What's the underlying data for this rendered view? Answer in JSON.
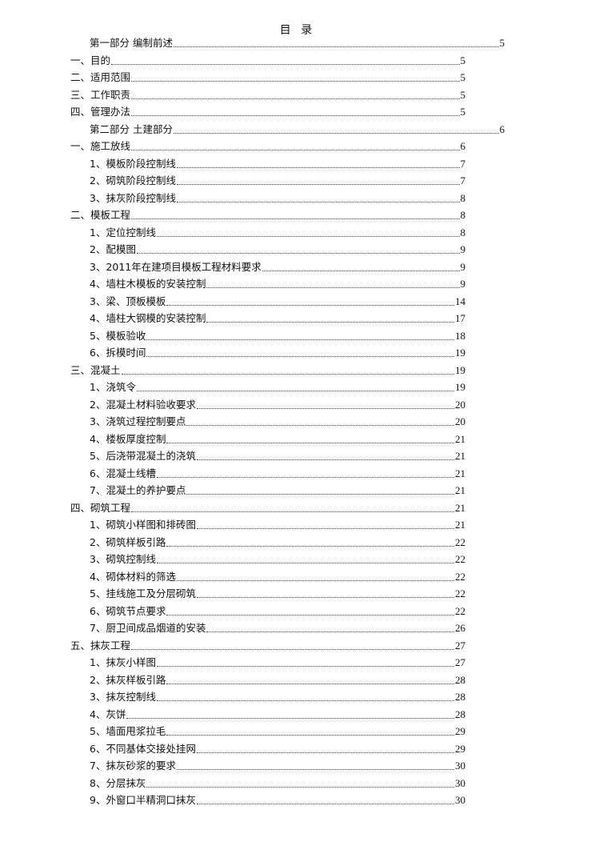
{
  "title": "目 录",
  "entries": [
    {
      "level": "part",
      "text": "第一部分  编制前述",
      "page": "5"
    },
    {
      "level": "l1",
      "text": "一、目的",
      "page": "5"
    },
    {
      "level": "l1",
      "text": "二、适用范围",
      "page": "5"
    },
    {
      "level": "l1",
      "text": "三、工作职责",
      "page": "5"
    },
    {
      "level": "l1",
      "text": "四、管理办法",
      "page": "5"
    },
    {
      "level": "part",
      "text": "第二部分  土建部分",
      "page": "6"
    },
    {
      "level": "l1",
      "text": "一、施工放线",
      "page": "6"
    },
    {
      "level": "l2",
      "text": "1、模板阶段控制线",
      "page": "7"
    },
    {
      "level": "l2",
      "text": "2、砌筑阶段控制线",
      "page": "7"
    },
    {
      "level": "l2",
      "text": "3、抹灰阶段控制线",
      "page": "8"
    },
    {
      "level": "l1",
      "text": "二、模板工程",
      "page": "8"
    },
    {
      "level": "l2",
      "text": "1、定位控制线",
      "page": "8"
    },
    {
      "level": "l2",
      "text": "2、配模图",
      "page": "9"
    },
    {
      "level": "l2",
      "text": "3、2011年在建项目模板工程材料要求",
      "page": "9"
    },
    {
      "level": "l2",
      "text": "4、墙柱木模板的安装控制",
      "page": "9"
    },
    {
      "level": "l2",
      "text": "3、梁、顶板模板",
      "page": "14"
    },
    {
      "level": "l2",
      "text": "4、墙柱大钢模的安装控制",
      "page": "17"
    },
    {
      "level": "l2",
      "text": "5、模板验收",
      "page": "18"
    },
    {
      "level": "l2",
      "text": "6、拆模时间",
      "page": "19"
    },
    {
      "level": "l1",
      "text": "三、混凝土",
      "page": "19"
    },
    {
      "level": "l2",
      "text": "1、浇筑令",
      "page": "19"
    },
    {
      "level": "l2",
      "text": "2、混凝土材料验收要求",
      "page": "20"
    },
    {
      "level": "l2",
      "text": "3、浇筑过程控制要点",
      "page": "20"
    },
    {
      "level": "l2",
      "text": "4、楼板厚度控制",
      "page": "21"
    },
    {
      "level": "l2",
      "text": "5、后浇带混凝土的浇筑",
      "page": "21"
    },
    {
      "level": "l2",
      "text": "6、混凝土线槽",
      "page": "21"
    },
    {
      "level": "l2",
      "text": "7、混凝土的养护要点",
      "page": "21"
    },
    {
      "level": "l1",
      "text": "四、砌筑工程",
      "page": "21"
    },
    {
      "level": "l2",
      "text": "1、砌筑小样图和排砖图",
      "page": "21"
    },
    {
      "level": "l2",
      "text": "2、砌筑样板引路",
      "page": "22"
    },
    {
      "level": "l2",
      "text": "3、砌筑控制线",
      "page": "22"
    },
    {
      "level": "l2",
      "text": "4、砌体材料的筛选",
      "page": "22"
    },
    {
      "level": "l2",
      "text": "5、挂线施工及分层砌筑",
      "page": "22"
    },
    {
      "level": "l2",
      "text": "6、砌筑节点要求",
      "page": "22"
    },
    {
      "level": "l2",
      "text": "7、厨卫间成品烟道的安装",
      "page": "26"
    },
    {
      "level": "l1",
      "text": "五、抹灰工程",
      "page": "27"
    },
    {
      "level": "l2",
      "text": "1、抹灰小样图",
      "page": "27"
    },
    {
      "level": "l2",
      "text": "2、抹灰样板引路",
      "page": "28"
    },
    {
      "level": "l2",
      "text": "3、抹灰控制线",
      "page": "28"
    },
    {
      "level": "l2",
      "text": "4、灰饼",
      "page": "28"
    },
    {
      "level": "l2",
      "text": "5、墙面甩浆拉毛",
      "page": "29"
    },
    {
      "level": "l2",
      "text": "6、不同基体交接处挂网",
      "page": "29"
    },
    {
      "level": "l2",
      "text": "7、抹灰砂浆的要求",
      "page": "30"
    },
    {
      "level": "l2",
      "text": "8、分层抹灰",
      "page": "30"
    },
    {
      "level": "l2",
      "text": "9、外窗口半精洞口抹灰",
      "page": "30"
    }
  ]
}
